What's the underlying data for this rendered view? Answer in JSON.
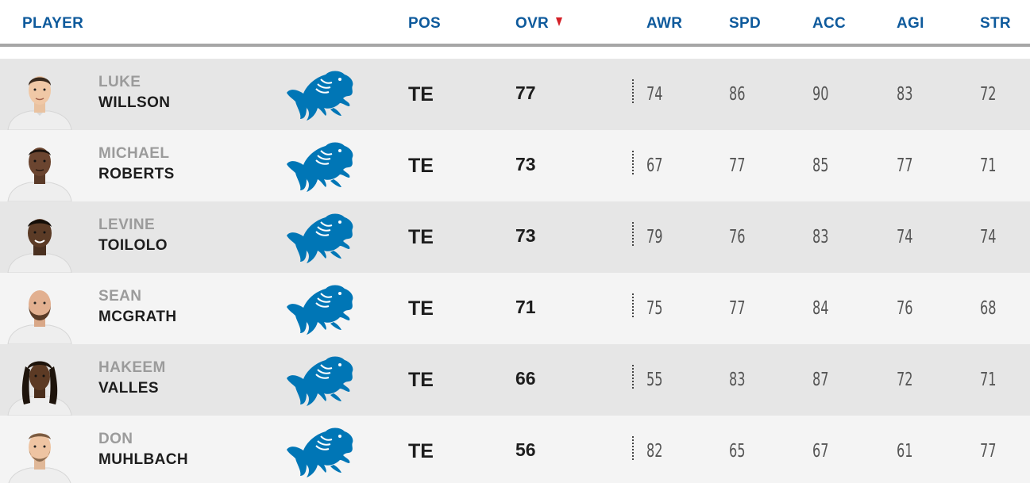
{
  "header": {
    "player": "PLAYER",
    "pos": "POS",
    "ovr": "OVR",
    "awr": "AWR",
    "spd": "SPD",
    "acc": "ACC",
    "agi": "AGI",
    "str": "STR",
    "sort_icon": "sort-descending-icon",
    "sort_color": "#d42027"
  },
  "colors": {
    "header_text": "#0e5a9c",
    "row_odd": "#e6e6e6",
    "row_even": "#f4f4f4",
    "lions_blue": "#0076b6"
  },
  "team_icon": "detroit-lions-logo",
  "players": [
    {
      "first": "LUKE",
      "last": "WILLSON",
      "pos": "TE",
      "ovr": "77",
      "awr": "74",
      "spd": "86",
      "acc": "90",
      "agi": "83",
      "str": "72"
    },
    {
      "first": "MICHAEL",
      "last": "ROBERTS",
      "pos": "TE",
      "ovr": "73",
      "awr": "67",
      "spd": "77",
      "acc": "85",
      "agi": "77",
      "str": "71"
    },
    {
      "first": "LEVINE",
      "last": "TOILOLO",
      "pos": "TE",
      "ovr": "73",
      "awr": "79",
      "spd": "76",
      "acc": "83",
      "agi": "74",
      "str": "74"
    },
    {
      "first": "SEAN",
      "last": "MCGRATH",
      "pos": "TE",
      "ovr": "71",
      "awr": "75",
      "spd": "77",
      "acc": "84",
      "agi": "76",
      "str": "68"
    },
    {
      "first": "HAKEEM",
      "last": "VALLES",
      "pos": "TE",
      "ovr": "66",
      "awr": "55",
      "spd": "83",
      "acc": "87",
      "agi": "72",
      "str": "71"
    },
    {
      "first": "DON",
      "last": "MUHLBACH",
      "pos": "TE",
      "ovr": "56",
      "awr": "82",
      "spd": "65",
      "acc": "67",
      "agi": "61",
      "str": "77"
    }
  ]
}
